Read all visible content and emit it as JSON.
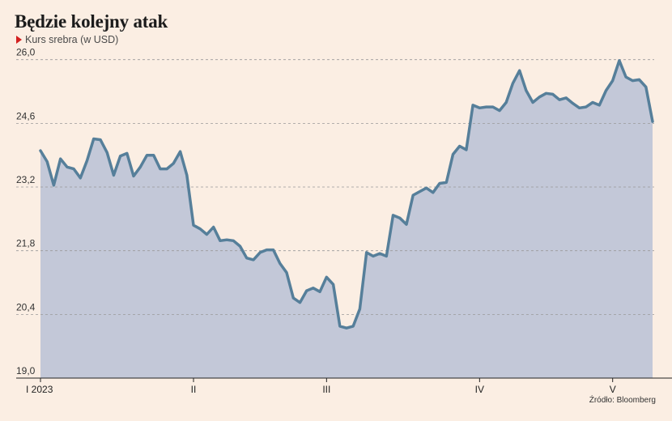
{
  "header": {
    "title": "Będzie kolejny atak",
    "subtitle": "Kurs srebra (w USD)",
    "subtitle_icon": "red-triangle-icon"
  },
  "footer": {
    "source": "Źródło: Bloomberg"
  },
  "colors": {
    "background": "#fbeee3",
    "area_fill": "#c3c8d8",
    "line": "#567f9a",
    "grid": "#999999",
    "accent": "#d32020"
  },
  "chart_data": {
    "type": "area",
    "title": "Będzie kolejny atak",
    "subtitle": "Kurs srebra (w USD)",
    "xlabel": "",
    "ylabel": "",
    "ylim": [
      19.0,
      26.6
    ],
    "yticks": [
      "19,0",
      "20,4",
      "21,8",
      "23,2",
      "24,6",
      "26,0"
    ],
    "ytick_values": [
      19.0,
      20.4,
      21.8,
      23.2,
      24.6,
      26.0
    ],
    "xticks": [
      {
        "label": "I 2023",
        "index": 0
      },
      {
        "label": "II",
        "index": 23
      },
      {
        "label": "III",
        "index": 43
      },
      {
        "label": "IV",
        "index": 66
      },
      {
        "label": "V",
        "index": 86
      }
    ],
    "grid": "horizontal dashed",
    "series": [
      {
        "values": [
          24.0,
          23.76,
          23.24,
          23.82,
          23.64,
          23.6,
          23.4,
          23.78,
          24.26,
          24.24,
          23.96,
          23.46,
          23.88,
          23.94,
          23.44,
          23.64,
          23.9,
          23.9,
          23.6,
          23.6,
          23.72,
          23.98,
          23.46,
          22.36,
          22.28,
          22.16,
          22.32,
          22.02,
          22.04,
          22.02,
          21.9,
          21.64,
          21.6,
          21.76,
          21.82,
          21.82,
          21.52,
          21.32,
          20.76,
          20.66,
          20.92,
          20.98,
          20.9,
          21.22,
          21.06,
          20.14,
          20.1,
          20.14,
          20.52,
          21.76,
          21.68,
          21.74,
          21.68,
          22.58,
          22.52,
          22.38,
          23.02,
          23.1,
          23.18,
          23.08,
          23.28,
          23.3,
          23.92,
          24.1,
          24.02,
          25.0,
          24.94,
          24.96,
          24.96,
          24.88,
          25.06,
          25.48,
          25.76,
          25.32,
          25.06,
          25.18,
          25.26,
          25.24,
          25.12,
          25.16,
          25.04,
          24.94,
          24.96,
          25.06,
          25.0,
          25.32,
          25.54,
          25.98,
          25.62,
          25.54,
          25.56,
          25.4,
          24.64
        ]
      }
    ]
  }
}
